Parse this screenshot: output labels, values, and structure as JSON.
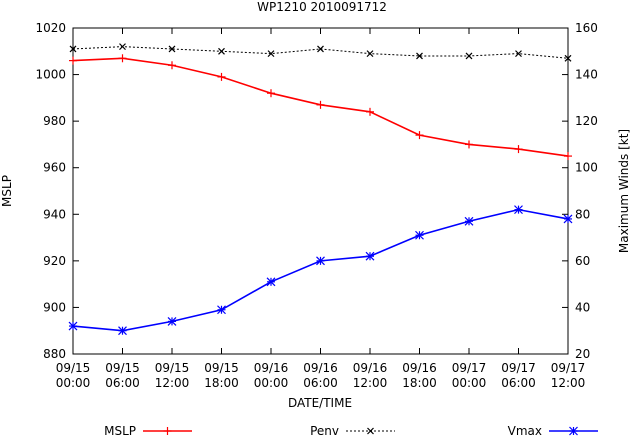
{
  "chart_data": {
    "type": "line",
    "title": "WP1210 2010091712",
    "xlabel": "DATE/TIME",
    "ylabel_left": "MSLP",
    "ylabel_right": "Maximum Winds [kt]",
    "x": [
      [
        "09/15",
        "00:00"
      ],
      [
        "09/15",
        "06:00"
      ],
      [
        "09/15",
        "12:00"
      ],
      [
        "09/15",
        "18:00"
      ],
      [
        "09/16",
        "00:00"
      ],
      [
        "09/16",
        "06:00"
      ],
      [
        "09/16",
        "12:00"
      ],
      [
        "09/16",
        "18:00"
      ],
      [
        "09/17",
        "00:00"
      ],
      [
        "09/17",
        "06:00"
      ],
      [
        "09/17",
        "12:00"
      ]
    ],
    "ylim_left": [
      880,
      1020
    ],
    "yticks_left": [
      880,
      900,
      920,
      940,
      960,
      980,
      1000,
      1020
    ],
    "ylim_right": [
      20,
      160
    ],
    "yticks_right": [
      20,
      40,
      60,
      80,
      100,
      120,
      140,
      160
    ],
    "grid": false,
    "legend_position": "bottom",
    "series": [
      {
        "name": "MSLP",
        "axis": "left",
        "color": "#ff0000",
        "marker": "plus",
        "values": [
          1006,
          1007,
          1004,
          999,
          992,
          987,
          984,
          974,
          970,
          968,
          965
        ]
      },
      {
        "name": "Penv",
        "axis": "left",
        "color": "#000000",
        "marker": "cross",
        "dashed": true,
        "values": [
          1011,
          1012,
          1011,
          1010,
          1009,
          1011,
          1009,
          1008,
          1008,
          1009,
          1007
        ]
      },
      {
        "name": "Vmax",
        "axis": "right",
        "color": "#0000ff",
        "marker": "star",
        "values": [
          32,
          30,
          34,
          39,
          51,
          60,
          62,
          71,
          77,
          82,
          78
        ]
      }
    ]
  }
}
